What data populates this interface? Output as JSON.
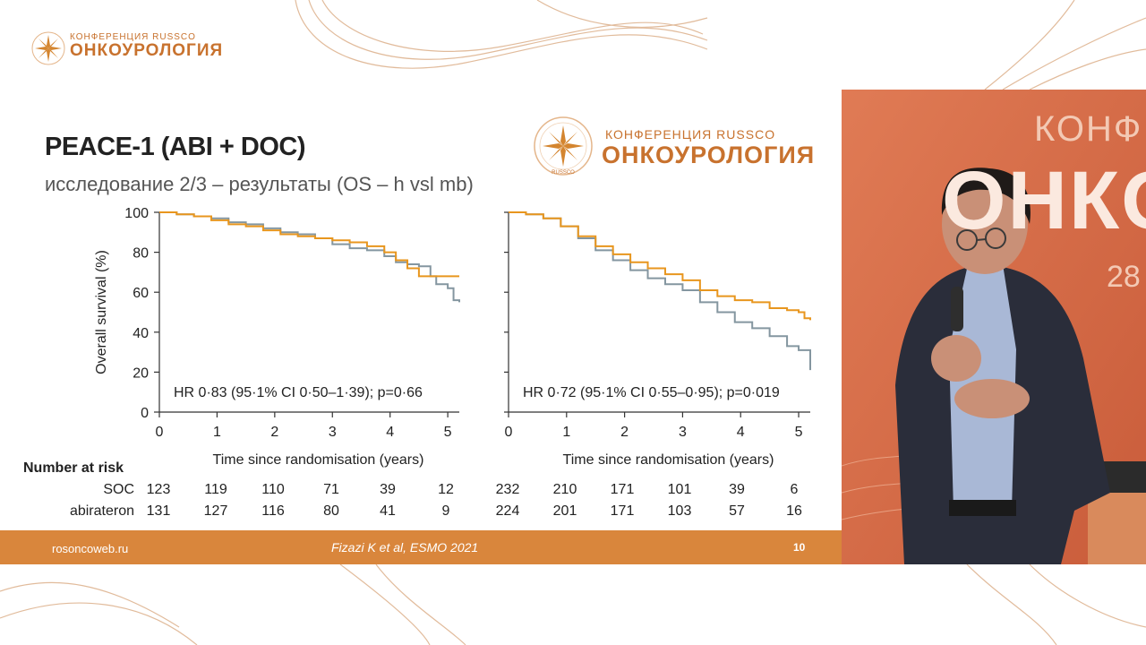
{
  "brand": {
    "conference_label": "КОНФЕРЕНЦИЯ RUSSCO",
    "title": "ОНКОУРОЛОГИЯ",
    "seal_text": "RUSSCO"
  },
  "slide": {
    "title": "PEACE-1 (ABI + DOC)",
    "subtitle": "исследование 2/3 – результаты (OS – h vsl mb)"
  },
  "chart_data": [
    {
      "type": "line",
      "title": "",
      "xlabel": "Time since randomisation (years)",
      "ylabel": "Overall survival (%)",
      "xlim": [
        0,
        5.2
      ],
      "ylim": [
        0,
        100
      ],
      "xticks": [
        "0",
        "1",
        "2",
        "3",
        "4",
        "5"
      ],
      "yticks": [
        "0",
        "20",
        "40",
        "60",
        "80",
        "100"
      ],
      "annotation": "HR 0·83 (95·1% CI 0·50–1·39); p=0·66",
      "series": [
        {
          "name": "SOC",
          "color": "#8496a0",
          "x": [
            0,
            0.3,
            0.6,
            0.9,
            1.2,
            1.5,
            1.8,
            2.1,
            2.4,
            2.7,
            3.0,
            3.3,
            3.6,
            3.9,
            4.1,
            4.3,
            4.5,
            4.7,
            4.8,
            5.0,
            5.1,
            5.2
          ],
          "y": [
            100,
            99,
            98,
            97,
            95,
            94,
            92,
            90,
            89,
            87,
            84,
            82,
            81,
            78,
            75,
            74,
            73,
            68,
            64,
            62,
            56,
            55
          ]
        },
        {
          "name": "abirateron",
          "color": "#e8961e",
          "x": [
            0,
            0.3,
            0.6,
            0.9,
            1.2,
            1.5,
            1.8,
            2.1,
            2.4,
            2.7,
            3.0,
            3.3,
            3.6,
            3.9,
            4.1,
            4.3,
            4.5,
            4.8,
            5.0,
            5.2
          ],
          "y": [
            100,
            99,
            98,
            96,
            94,
            93,
            91,
            89,
            88,
            87,
            86,
            85,
            83,
            80,
            76,
            72,
            68,
            68,
            68,
            68
          ]
        }
      ]
    },
    {
      "type": "line",
      "title": "",
      "xlabel": "Time since randomisation (years)",
      "ylabel": "",
      "xlim": [
        0,
        5.2
      ],
      "ylim": [
        0,
        100
      ],
      "xticks": [
        "0",
        "1",
        "2",
        "3",
        "4",
        "5"
      ],
      "yticks": [],
      "annotation": "HR 0·72 (95·1% CI 0·55–0·95); p=0·019",
      "series": [
        {
          "name": "SOC",
          "color": "#8496a0",
          "x": [
            0,
            0.3,
            0.6,
            0.9,
            1.2,
            1.5,
            1.8,
            2.1,
            2.4,
            2.7,
            3.0,
            3.3,
            3.6,
            3.9,
            4.2,
            4.5,
            4.8,
            5.0,
            5.1,
            5.2
          ],
          "y": [
            100,
            99,
            97,
            93,
            87,
            81,
            76,
            71,
            67,
            64,
            61,
            55,
            50,
            45,
            42,
            38,
            33,
            31,
            31,
            21
          ]
        },
        {
          "name": "abirateron",
          "color": "#e8961e",
          "x": [
            0,
            0.3,
            0.6,
            0.9,
            1.2,
            1.5,
            1.8,
            2.1,
            2.4,
            2.7,
            3.0,
            3.3,
            3.6,
            3.9,
            4.2,
            4.5,
            4.8,
            5.0,
            5.1,
            5.2
          ],
          "y": [
            100,
            99,
            97,
            93,
            88,
            83,
            79,
            75,
            72,
            69,
            66,
            61,
            58,
            56,
            55,
            52,
            51,
            50,
            47,
            46
          ]
        }
      ]
    }
  ],
  "risk_table": {
    "title": "Number at risk",
    "rows": [
      {
        "label": "SOC",
        "left": [
          "123",
          "119",
          "110",
          "71",
          "39",
          "12"
        ],
        "right": [
          "232",
          "210",
          "171",
          "101",
          "39",
          "6"
        ]
      },
      {
        "label": "abirateron",
        "left": [
          "131",
          "127",
          "116",
          "80",
          "41",
          "9"
        ],
        "right": [
          "224",
          "201",
          "171",
          "103",
          "57",
          "16"
        ]
      }
    ]
  },
  "footer": {
    "site": "rosoncoweb.ru",
    "citation": "Fizazi K et al, ESMO 2021",
    "page": "10"
  },
  "stage": {
    "line1": "КОНФ",
    "line2": "ОНКО",
    "line3": "28"
  }
}
